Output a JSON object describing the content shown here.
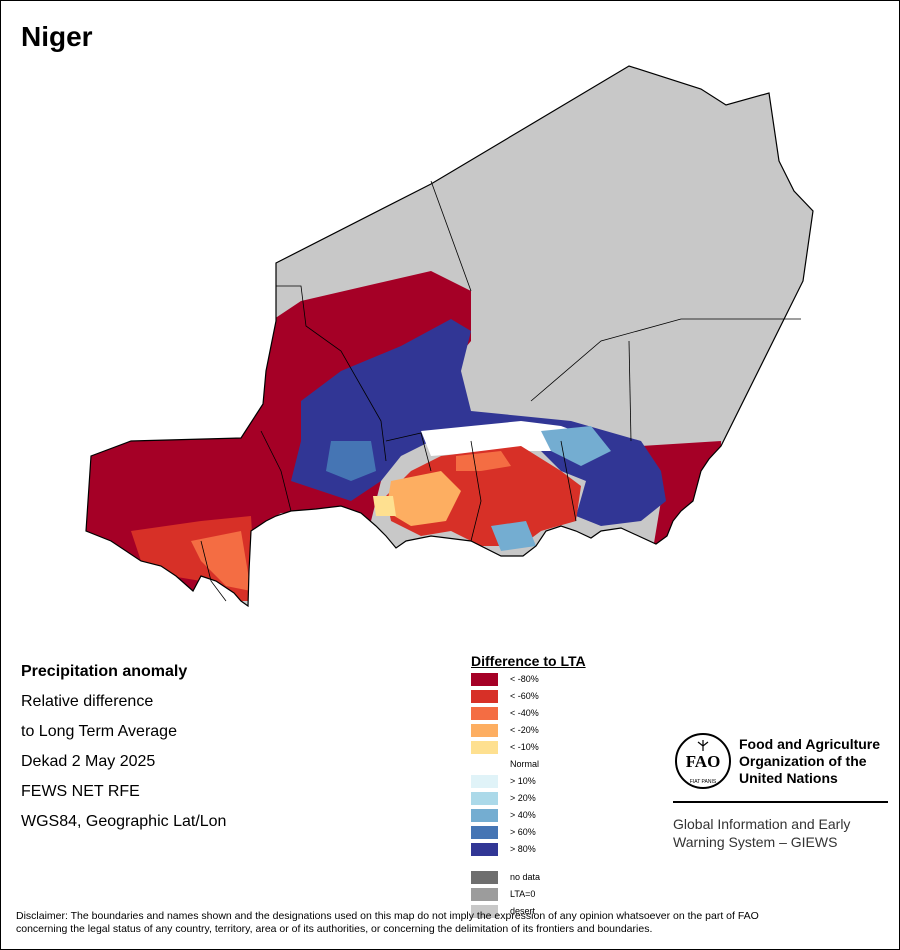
{
  "map": {
    "title": "Niger"
  },
  "info": {
    "title": "Precipitation anomaly",
    "line1": "Relative difference",
    "line2": "to Long Term Average",
    "period": "Dekad 2 May 2025",
    "source": "FEWS NET RFE",
    "projection": "WGS84, Geographic Lat/Lon"
  },
  "legend": {
    "title": "Difference to LTA",
    "items": [
      {
        "label": "< -80%",
        "color": "#a50026"
      },
      {
        "label": "< -60%",
        "color": "#d73027"
      },
      {
        "label": "< -40%",
        "color": "#f46d43"
      },
      {
        "label": "< -20%",
        "color": "#fdae61"
      },
      {
        "label": "< -10%",
        "color": "#fee090"
      },
      {
        "label": "Normal",
        "color": "#ffffff"
      },
      {
        "label": "> 10%",
        "color": "#e0f3f8"
      },
      {
        "label": "> 20%",
        "color": "#abd9e9"
      },
      {
        "label": "> 40%",
        "color": "#74add1"
      },
      {
        "label": "> 60%",
        "color": "#4575b4"
      },
      {
        "label": "> 80%",
        "color": "#313695"
      }
    ],
    "extra": [
      {
        "label": "no data",
        "color": "#6e6e6e"
      },
      {
        "label": "LTA=0",
        "color": "#9c9c9c"
      },
      {
        "label": "desert",
        "color": "#c8c8c8"
      }
    ]
  },
  "org": {
    "logo_text": "FAO",
    "logo_motto": "FIAT PANIS",
    "name_line1": "Food and Agriculture",
    "name_line2": "Organization of the",
    "name_line3": "United Nations",
    "system_line1": "Global Information and Early",
    "system_line2": "Warning System – GIEWS"
  },
  "disclaimer_line1": "Disclaimer: The boundaries and names shown and the designations used on this map do not imply the expression of any opinion whatsoever on the part of FAO",
  "disclaimer_line2": "concerning the legal status of any country, territory, area or of its authorities, or concerning the delimitation of its frontiers and boundaries."
}
